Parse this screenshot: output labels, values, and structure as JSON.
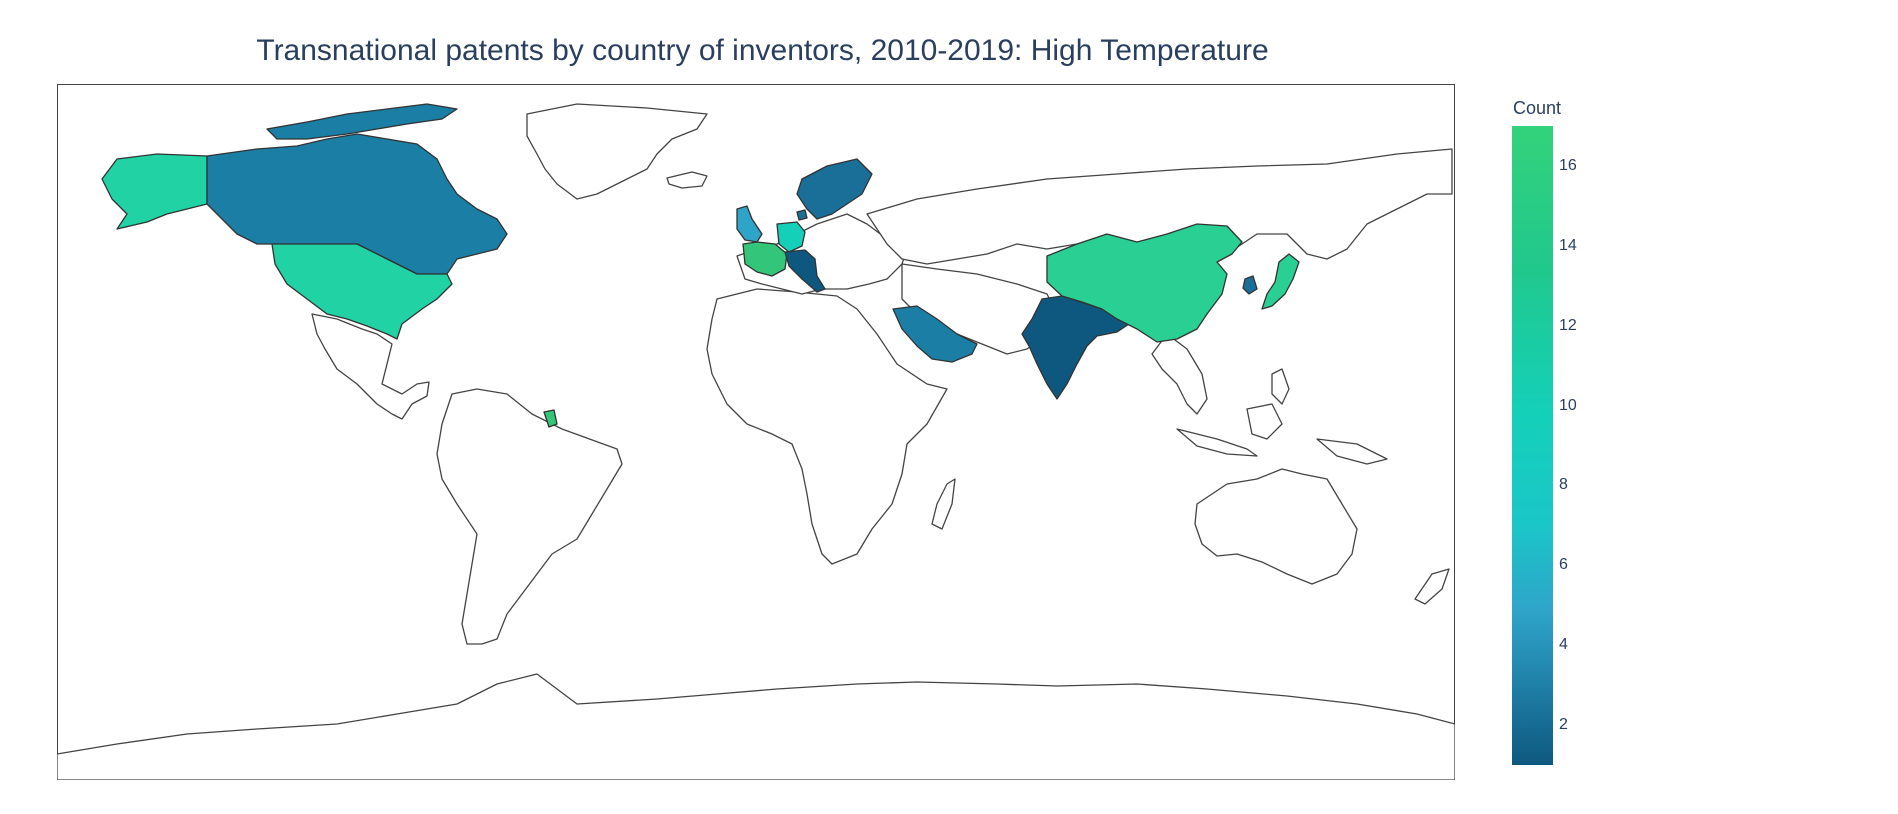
{
  "title": "Transnational patents by country of inventors, 2010-2019: High Temperature",
  "colorbar": {
    "title": "Count",
    "ticks": [
      "16",
      "14",
      "12",
      "10",
      "8",
      "6",
      "4",
      "2"
    ],
    "tick_values": [
      16,
      14,
      12,
      10,
      8,
      6,
      4,
      2
    ],
    "range": [
      1,
      17
    ],
    "colorscale": [
      "#0e587f",
      "#1f7ea6",
      "#2fa4c9",
      "#1ac7c8",
      "#14d0b9",
      "#21c88c",
      "#33d27b"
    ]
  },
  "chart_data": {
    "type": "choropleth",
    "title": "Transnational patents by country of inventors, 2010-2019: High Temperature",
    "colorbar_title": "Count",
    "zrange": [
      1,
      17
    ],
    "countries": [
      {
        "name": "United States",
        "value": 11
      },
      {
        "name": "Canada",
        "value": 2
      },
      {
        "name": "China",
        "value": 12
      },
      {
        "name": "Japan",
        "value": 12
      },
      {
        "name": "South Korea",
        "value": 1
      },
      {
        "name": "India",
        "value": 1
      },
      {
        "name": "Saudi Arabia",
        "value": 2
      },
      {
        "name": "France",
        "value": 16
      },
      {
        "name": "French Guiana",
        "value": 16
      },
      {
        "name": "Germany",
        "value": 9
      },
      {
        "name": "United Kingdom",
        "value": 4
      },
      {
        "name": "Italy",
        "value": 1
      },
      {
        "name": "Austria",
        "value": 1
      },
      {
        "name": "Switzerland",
        "value": 1
      },
      {
        "name": "Sweden",
        "value": 2
      },
      {
        "name": "Finland",
        "value": 1
      },
      {
        "name": "Norway",
        "value": 2
      },
      {
        "name": "Denmark",
        "value": 2
      }
    ]
  }
}
